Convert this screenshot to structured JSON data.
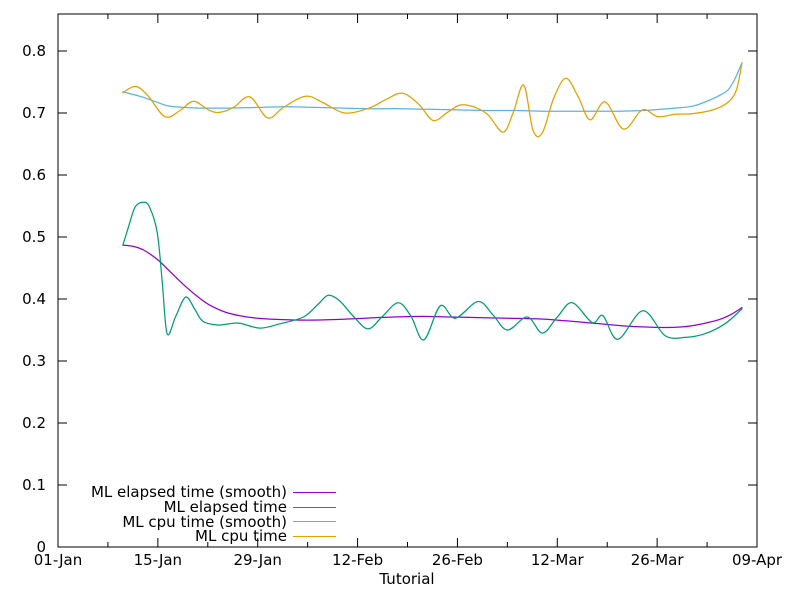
{
  "chart_data": {
    "type": "line",
    "title": "",
    "xlabel": "Tutorial",
    "background_color": "#ffffff",
    "axis_color": "#000000",
    "grid": false,
    "legend_position": "bottom-left-inside",
    "x_axis": {
      "kind": "date",
      "min_day": 0,
      "max_day": 98,
      "major_ticks": [
        {
          "day": 0,
          "label": "01-Jan"
        },
        {
          "day": 14,
          "label": "15-Jan"
        },
        {
          "day": 28,
          "label": "29-Jan"
        },
        {
          "day": 42,
          "label": "12-Feb"
        },
        {
          "day": 56,
          "label": "26-Feb"
        },
        {
          "day": 70,
          "label": "12-Mar"
        },
        {
          "day": 84,
          "label": "26-Mar"
        },
        {
          "day": 98,
          "label": "09-Apr"
        }
      ],
      "minor_tick_days": [
        7,
        21,
        35,
        49,
        63,
        77,
        91
      ]
    },
    "y_axis": {
      "min": 0,
      "max": 0.8597,
      "major_ticks": [
        {
          "value": 0,
          "label": "0"
        },
        {
          "value": 0.1,
          "label": "0.1"
        },
        {
          "value": 0.2,
          "label": "0.2"
        },
        {
          "value": 0.3,
          "label": "0.3"
        },
        {
          "value": 0.4,
          "label": "0.4"
        },
        {
          "value": 0.5,
          "label": "0.5"
        },
        {
          "value": 0.6,
          "label": "0.6"
        },
        {
          "value": 0.7,
          "label": "0.7"
        },
        {
          "value": 0.8,
          "label": "0.8"
        }
      ]
    },
    "series": [
      {
        "name": "ML elapsed time (smooth)",
        "color": "#9400d3",
        "points": [
          [
            9.1,
            0.487
          ],
          [
            10.5,
            0.485
          ],
          [
            12,
            0.479
          ],
          [
            14,
            0.463
          ],
          [
            16,
            0.441
          ],
          [
            18,
            0.419
          ],
          [
            20,
            0.4
          ],
          [
            21.3,
            0.39
          ],
          [
            23.4,
            0.379
          ],
          [
            25.5,
            0.373
          ],
          [
            28,
            0.369
          ],
          [
            31,
            0.367
          ],
          [
            35,
            0.366
          ],
          [
            39,
            0.367
          ],
          [
            43,
            0.369
          ],
          [
            47,
            0.371
          ],
          [
            51,
            0.372
          ],
          [
            55,
            0.371
          ],
          [
            59,
            0.37
          ],
          [
            63,
            0.369
          ],
          [
            67,
            0.368
          ],
          [
            70,
            0.366
          ],
          [
            73,
            0.363
          ],
          [
            76,
            0.36
          ],
          [
            79,
            0.357
          ],
          [
            82,
            0.355
          ],
          [
            85,
            0.354
          ],
          [
            87.5,
            0.355
          ],
          [
            89.5,
            0.358
          ],
          [
            91.5,
            0.363
          ],
          [
            93,
            0.368
          ],
          [
            94.5,
            0.376
          ],
          [
            95.9,
            0.386
          ]
        ]
      },
      {
        "name": "ML elapsed time",
        "color": "#009e73",
        "points": [
          [
            9.1,
            0.487
          ],
          [
            9.9,
            0.517
          ],
          [
            10.8,
            0.548
          ],
          [
            11.9,
            0.556
          ],
          [
            12.8,
            0.549
          ],
          [
            13.9,
            0.508
          ],
          [
            14.6,
            0.43
          ],
          [
            15.3,
            0.344
          ],
          [
            16.5,
            0.372
          ],
          [
            17.9,
            0.403
          ],
          [
            19.2,
            0.383
          ],
          [
            20.3,
            0.364
          ],
          [
            22.3,
            0.358
          ],
          [
            24,
            0.36
          ],
          [
            25.5,
            0.361
          ],
          [
            28.3,
            0.353
          ],
          [
            31.1,
            0.36
          ],
          [
            34.4,
            0.371
          ],
          [
            36.5,
            0.392
          ],
          [
            37.9,
            0.406
          ],
          [
            39.5,
            0.397
          ],
          [
            41.5,
            0.371
          ],
          [
            43.5,
            0.352
          ],
          [
            45.5,
            0.372
          ],
          [
            47.7,
            0.394
          ],
          [
            49.5,
            0.372
          ],
          [
            51.3,
            0.334
          ],
          [
            53.6,
            0.389
          ],
          [
            55.7,
            0.369
          ],
          [
            58.9,
            0.396
          ],
          [
            61,
            0.374
          ],
          [
            63,
            0.35
          ],
          [
            65.8,
            0.371
          ],
          [
            67.9,
            0.345
          ],
          [
            70,
            0.371
          ],
          [
            72.1,
            0.394
          ],
          [
            74.9,
            0.362
          ],
          [
            76.4,
            0.373
          ],
          [
            78.5,
            0.335
          ],
          [
            82,
            0.381
          ],
          [
            85.1,
            0.341
          ],
          [
            87.9,
            0.338
          ],
          [
            90.7,
            0.344
          ],
          [
            93.5,
            0.36
          ],
          [
            95.9,
            0.384
          ]
        ]
      },
      {
        "name": "ML cpu time (smooth)",
        "color": "#56b4e9",
        "points": [
          [
            9.1,
            0.734
          ],
          [
            11.5,
            0.727
          ],
          [
            13.5,
            0.719
          ],
          [
            15.3,
            0.712
          ],
          [
            17.5,
            0.709
          ],
          [
            20,
            0.708
          ],
          [
            24,
            0.708
          ],
          [
            28,
            0.709
          ],
          [
            32,
            0.71
          ],
          [
            36,
            0.709
          ],
          [
            40,
            0.708
          ],
          [
            44,
            0.707
          ],
          [
            48,
            0.707
          ],
          [
            52,
            0.706
          ],
          [
            56,
            0.705
          ],
          [
            60,
            0.704
          ],
          [
            64,
            0.704
          ],
          [
            68,
            0.703
          ],
          [
            72,
            0.703
          ],
          [
            76,
            0.703
          ],
          [
            79,
            0.703
          ],
          [
            82,
            0.704
          ],
          [
            84.5,
            0.706
          ],
          [
            86.5,
            0.708
          ],
          [
            89,
            0.711
          ],
          [
            91.4,
            0.721
          ],
          [
            93,
            0.73
          ],
          [
            94,
            0.738
          ],
          [
            94.9,
            0.755
          ],
          [
            95.9,
            0.781
          ]
        ]
      },
      {
        "name": "ML cpu time",
        "color": "#e69f00",
        "points": [
          [
            9.1,
            0.733
          ],
          [
            10.9,
            0.743
          ],
          [
            12.6,
            0.728
          ],
          [
            15,
            0.694
          ],
          [
            17.1,
            0.704
          ],
          [
            19,
            0.719
          ],
          [
            21.1,
            0.705
          ],
          [
            22.6,
            0.701
          ],
          [
            24.6,
            0.709
          ],
          [
            26.9,
            0.726
          ],
          [
            29.4,
            0.692
          ],
          [
            31.6,
            0.709
          ],
          [
            34.7,
            0.727
          ],
          [
            37.1,
            0.717
          ],
          [
            40.2,
            0.7
          ],
          [
            43.6,
            0.708
          ],
          [
            46,
            0.722
          ],
          [
            48.3,
            0.732
          ],
          [
            50.6,
            0.714
          ],
          [
            52.6,
            0.688
          ],
          [
            54.6,
            0.701
          ],
          [
            56.4,
            0.713
          ],
          [
            58.5,
            0.709
          ],
          [
            60.3,
            0.697
          ],
          [
            62.4,
            0.669
          ],
          [
            63.8,
            0.7
          ],
          [
            65.3,
            0.745
          ],
          [
            66.6,
            0.672
          ],
          [
            67.9,
            0.668
          ],
          [
            69.5,
            0.724
          ],
          [
            71.2,
            0.756
          ],
          [
            72.9,
            0.727
          ],
          [
            74.6,
            0.689
          ],
          [
            76.7,
            0.718
          ],
          [
            79.3,
            0.674
          ],
          [
            81.9,
            0.705
          ],
          [
            84.1,
            0.694
          ],
          [
            86.5,
            0.698
          ],
          [
            89,
            0.699
          ],
          [
            91.8,
            0.705
          ],
          [
            93.9,
            0.717
          ],
          [
            95.1,
            0.737
          ],
          [
            95.9,
            0.781
          ]
        ]
      }
    ]
  }
}
